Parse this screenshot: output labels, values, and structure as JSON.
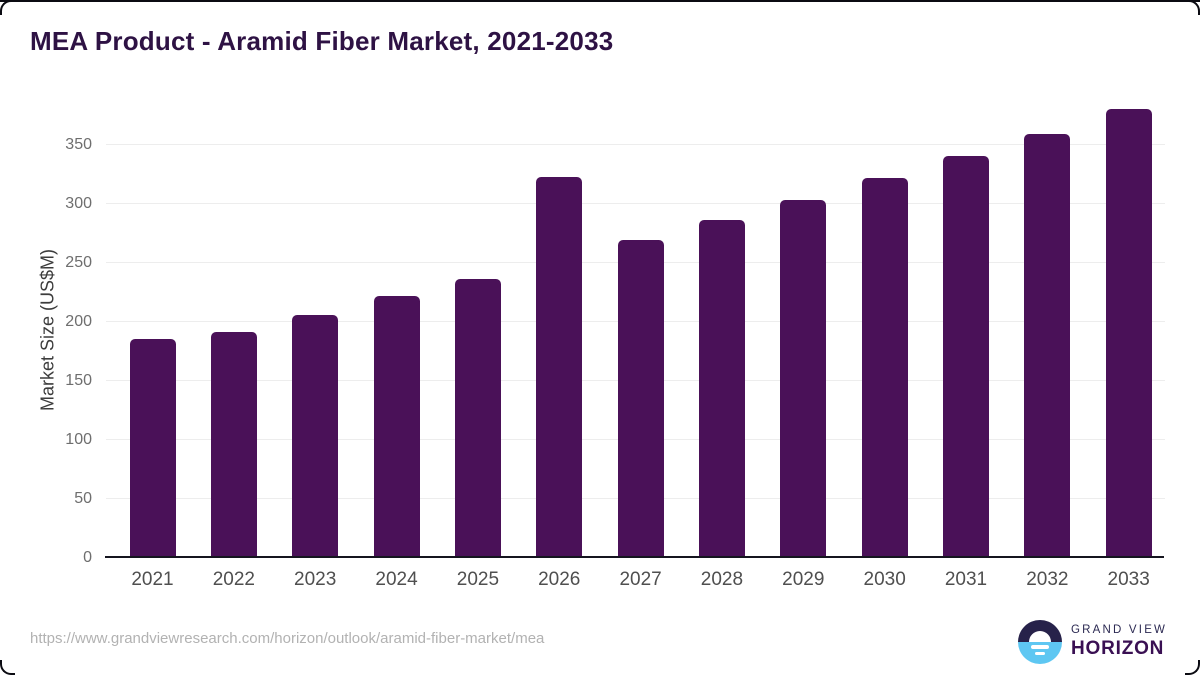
{
  "title": "MEA Product - Aramid Fiber Market, 2021-2033",
  "source_url": "https://www.grandviewresearch.com/horizon/outlook/aramid-fiber-market/mea",
  "logo": {
    "top_text": "GRAND VIEW",
    "bottom_text": "HORIZON",
    "mark_top_color": "#27224a",
    "mark_bottom_color": "#5ec7f2"
  },
  "colors": {
    "bar": "#4a1158",
    "title": "#2e1244",
    "axis_line": "#15151f",
    "gridline": "#ededed",
    "x_label": "#4f4f4f",
    "y_tick": "#6e6e6e",
    "url_text": "#b2b2b2"
  },
  "chart_data": {
    "type": "bar",
    "title": "MEA Product - Aramid Fiber Market, 2021-2033",
    "categories": [
      "2021",
      "2022",
      "2023",
      "2024",
      "2025",
      "2026",
      "2027",
      "2028",
      "2029",
      "2030",
      "2031",
      "2032",
      "2033"
    ],
    "values": [
      184,
      190,
      204,
      220,
      235,
      321,
      268,
      285,
      302,
      320,
      339,
      358,
      379
    ],
    "xlabel": "",
    "ylabel": "Market Size (US$M)",
    "ylim": [
      0,
      388
    ],
    "yticks": [
      0,
      50,
      100,
      150,
      200,
      250,
      300,
      350
    ],
    "grid": true,
    "legend": false,
    "bar_color": "#4a1158"
  }
}
